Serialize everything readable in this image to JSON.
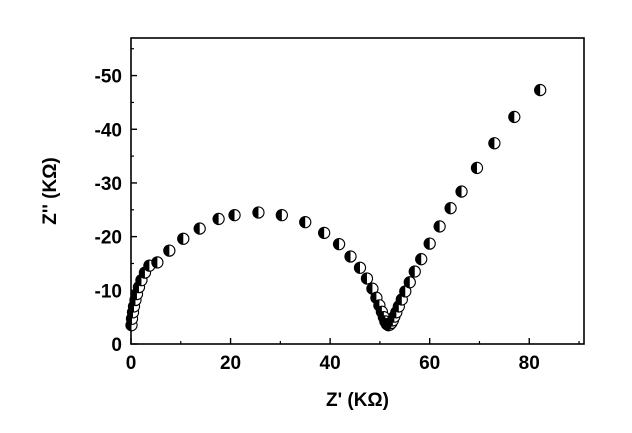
{
  "chart_data": {
    "type": "scatter",
    "title": "",
    "xlabel": "Z' (KΩ)",
    "ylabel": "Z'' (KΩ)",
    "xlim": [
      0,
      91
    ],
    "ylim": [
      0,
      -57
    ],
    "x_ticks": [
      0,
      20,
      40,
      60,
      80
    ],
    "y_ticks": [
      0,
      -10,
      -20,
      -30,
      -40,
      -50
    ],
    "x_tick_labels": [
      "0",
      "20",
      "40",
      "60",
      "80"
    ],
    "y_tick_labels": [
      "0",
      "-10",
      "-20",
      "-30",
      "-40",
      "-50"
    ],
    "grid": false,
    "marker": "half-filled circle (left half black, right half white)",
    "series": [
      {
        "points": [
          [
            0.1,
            -3.5
          ],
          [
            0.2,
            -4.7
          ],
          [
            0.4,
            -5.9
          ],
          [
            0.6,
            -7.0
          ],
          [
            0.9,
            -8.2
          ],
          [
            1.2,
            -9.3
          ],
          [
            1.6,
            -10.6
          ],
          [
            2.1,
            -11.9
          ],
          [
            2.8,
            -13.3
          ],
          [
            3.7,
            -14.6
          ],
          [
            5.3,
            -15.2
          ],
          [
            7.7,
            -17.4
          ],
          [
            10.5,
            -19.6
          ],
          [
            13.8,
            -21.5
          ],
          [
            17.6,
            -23.3
          ],
          [
            20.8,
            -24.0
          ],
          [
            25.6,
            -24.5
          ],
          [
            30.3,
            -24.0
          ],
          [
            35.0,
            -22.7
          ],
          [
            38.8,
            -20.7
          ],
          [
            41.8,
            -18.6
          ],
          [
            44.1,
            -16.3
          ],
          [
            46.0,
            -14.2
          ],
          [
            47.4,
            -12.2
          ],
          [
            48.5,
            -10.3
          ],
          [
            49.3,
            -8.6
          ],
          [
            49.9,
            -7.2
          ],
          [
            50.4,
            -6.0
          ],
          [
            50.8,
            -5.0
          ],
          [
            51.1,
            -4.2
          ],
          [
            51.4,
            -3.7
          ],
          [
            51.7,
            -3.5
          ],
          [
            52.0,
            -3.6
          ],
          [
            52.3,
            -3.9
          ],
          [
            52.6,
            -4.4
          ],
          [
            52.9,
            -5.1
          ],
          [
            53.3,
            -5.9
          ],
          [
            53.8,
            -7.0
          ],
          [
            54.4,
            -8.3
          ],
          [
            55.1,
            -9.8
          ],
          [
            56.0,
            -11.5
          ],
          [
            57.0,
            -13.5
          ],
          [
            58.3,
            -15.8
          ],
          [
            60.0,
            -18.7
          ],
          [
            62.0,
            -21.9
          ],
          [
            64.2,
            -25.3
          ],
          [
            66.4,
            -28.4
          ],
          [
            69.5,
            -32.8
          ],
          [
            73.0,
            -37.4
          ],
          [
            77.0,
            -42.3
          ],
          [
            82.2,
            -47.3
          ]
        ]
      }
    ]
  }
}
